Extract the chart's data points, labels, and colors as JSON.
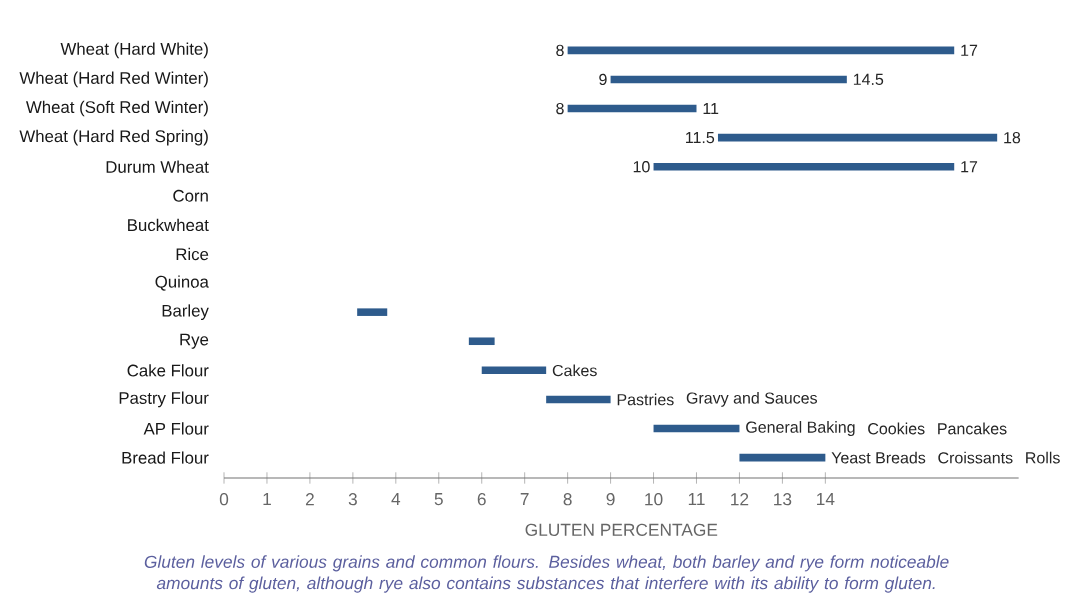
{
  "chart_data": {
    "type": "bar",
    "orientation": "horizontal",
    "xlabel": "GLUTEN PERCENTAGE",
    "categories": [
      "Wheat (Hard White)",
      "Wheat (Hard Red Winter)",
      "Wheat (Soft Red Winter)",
      "Wheat (Hard Red Spring)",
      "Durum Wheat",
      "Corn",
      "Buckwheat",
      "Rice",
      "Quinoa",
      "Barley",
      "Rye",
      "Cake Flour",
      "Pastry Flour",
      "AP Flour",
      "Bread Flour"
    ],
    "base": [
      8,
      9,
      8,
      11.5,
      10,
      null,
      null,
      null,
      null,
      3.1,
      5.7,
      6,
      7.5,
      10,
      12
    ],
    "values": [
      9,
      5.5,
      3,
      6.5,
      7,
      null,
      null,
      null,
      null,
      0.7,
      0.6,
      1.5,
      1.5,
      2,
      2
    ],
    "color": "#2e5b8c",
    "xlim": [
      0,
      18.5
    ],
    "xticks": [
      0,
      1,
      2,
      3,
      4,
      5,
      6,
      7,
      8,
      9,
      10,
      11,
      12,
      13,
      14
    ],
    "grid": false,
    "annotations": [
      "Gluten levels of various grains and common flours. Besides wheat, both barley and rye form noticeable amounts of gluten, although rye also contains substances that interfere with its ability to form gluten.",
      {
        "text": "8",
        "x": 8,
        "y": "Wheat (Hard White)"
      },
      {
        "text": "17",
        "x": 17,
        "y": "Wheat (Hard White)"
      },
      {
        "text": "9",
        "x": 9,
        "y": "Wheat (Hard Red Winter)"
      },
      {
        "text": "14.5",
        "x": 14.5,
        "y": "Wheat (Hard Red Winter)"
      },
      {
        "text": "8",
        "x": 8,
        "y": "Wheat (Soft Red Winter)"
      },
      {
        "text": "11",
        "x": 11,
        "y": "Wheat (Soft Red Winter)"
      },
      {
        "text": "11.5",
        "x": 11.5,
        "y": "Wheat (Hard Red Spring)"
      },
      {
        "text": "18",
        "x": 18,
        "y": "Wheat (Hard Red Spring)"
      },
      {
        "text": "10",
        "x": 10,
        "y": "Durum Wheat"
      },
      {
        "text": "17",
        "x": 17,
        "y": "Durum Wheat"
      },
      {
        "text": "Cakes",
        "x": 7.5,
        "y": "Cake Flour"
      },
      {
        "text": "Pastries",
        "x": 9,
        "y": "Pastry Flour"
      },
      "Gravy and Sauces",
      {
        "text": "General Baking",
        "x": 12,
        "y": "AP Flour"
      },
      "Cookies",
      "Pancakes",
      {
        "text": "Yeast Breads",
        "x": 14,
        "y": "Bread Flour"
      },
      "Croissants",
      "Rolls"
    ]
  }
}
